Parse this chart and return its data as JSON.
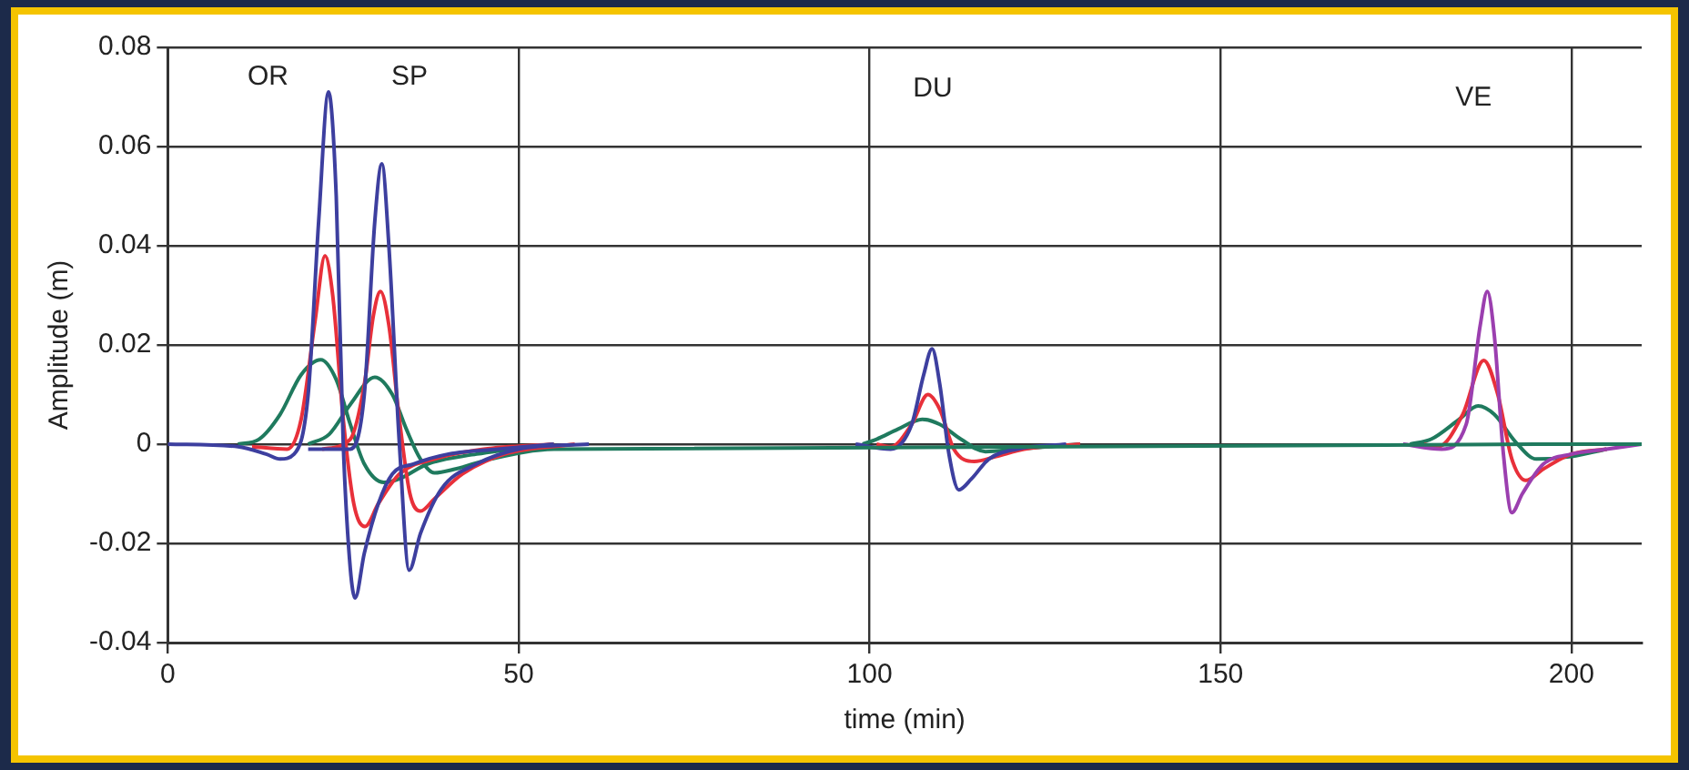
{
  "chart_data": {
    "type": "line",
    "xlabel": "time (min)",
    "ylabel": "Amplitude (m)",
    "xlim": [
      0,
      210
    ],
    "xticks": [
      0,
      50,
      100,
      150,
      200
    ],
    "ylim": [
      -0.04,
      0.08
    ],
    "yticks": [
      -0.04,
      -0.02,
      0,
      0.02,
      0.04,
      0.06,
      0.08
    ],
    "grid": true,
    "marker": "none",
    "line_style": "solid",
    "annotations": [
      "OR",
      "SP",
      "DU",
      "VE"
    ],
    "series": [
      {
        "color": "#3d3f9f",
        "x": [
          0,
          10,
          14,
          16,
          18,
          20,
          21.5,
          22.9,
          24,
          25,
          26,
          26.7,
          28,
          30,
          32,
          35,
          40,
          47,
          55
        ],
        "values": [
          0,
          -0.0005,
          -0.002,
          -0.003,
          -0.002,
          0.01,
          0.045,
          0.071,
          0.05,
          0,
          -0.025,
          -0.031,
          -0.022,
          -0.012,
          -0.006,
          -0.004,
          -0.002,
          -0.001,
          0
        ]
      },
      {
        "color": "#3d3f9f",
        "x": [
          20,
          26,
          28,
          29.5,
          30.5,
          31.5,
          33,
          34.4,
          36,
          39,
          44,
          50,
          60
        ],
        "values": [
          -0.001,
          -0.001,
          0.01,
          0.045,
          0.0565,
          0.04,
          0,
          -0.0254,
          -0.018,
          -0.009,
          -0.004,
          -0.001,
          0
        ]
      },
      {
        "color": "#e8303a",
        "x": [
          12,
          17,
          19,
          21,
          22.4,
          23.5,
          25,
          26.5,
          28.1,
          30,
          33,
          38,
          45,
          55
        ],
        "values": [
          -0.0005,
          -0.001,
          0.005,
          0.025,
          0.038,
          0.03,
          0.005,
          -0.012,
          -0.0166,
          -0.012,
          -0.006,
          -0.003,
          -0.001,
          0
        ]
      },
      {
        "color": "#e8303a",
        "x": [
          22,
          26,
          28,
          29.3,
          30.3,
          31.5,
          33,
          34.5,
          36,
          38,
          42,
          48,
          58
        ],
        "values": [
          -0.001,
          0.001,
          0.012,
          0.026,
          0.0308,
          0.024,
          0.005,
          -0.01,
          -0.0135,
          -0.011,
          -0.006,
          -0.002,
          0
        ]
      },
      {
        "color": "#1f7a5e",
        "x": [
          10,
          13,
          16,
          19,
          21.8,
          24,
          26,
          28,
          30.8,
          33,
          37,
          44,
          55
        ],
        "values": [
          0,
          0.001,
          0.006,
          0.014,
          0.017,
          0.013,
          0.004,
          -0.004,
          -0.0077,
          -0.007,
          -0.004,
          -0.002,
          0
        ]
      },
      {
        "color": "#1f7a5e",
        "x": [
          20,
          23,
          26,
          29.5,
          32,
          34,
          36,
          38,
          41,
          46,
          55,
          210
        ],
        "values": [
          0,
          0.002,
          0.008,
          0.0135,
          0.01,
          0.003,
          -0.003,
          -0.0058,
          -0.005,
          -0.003,
          -0.001,
          0
        ]
      },
      {
        "color": "#3d3f9f",
        "x": [
          98,
          103,
          106,
          107.7,
          108.9,
          110,
          111.3,
          112.7,
          114.5,
          117,
          121,
          128
        ],
        "values": [
          0,
          -0.001,
          0.004,
          0.014,
          0.0192,
          0.012,
          -0.002,
          -0.0092,
          -0.007,
          -0.003,
          -0.001,
          0
        ]
      },
      {
        "color": "#e8303a",
        "x": [
          101,
          103,
          106,
          108.3,
          110,
          112,
          114.9,
          118,
          122,
          130
        ],
        "values": [
          0,
          -0.0005,
          0.004,
          0.01,
          0.007,
          -0.001,
          -0.0035,
          -0.0025,
          -0.001,
          0
        ]
      },
      {
        "color": "#1f7a5e",
        "x": [
          99,
          101,
          104,
          107.5,
          110,
          113,
          116.5,
          121,
          130
        ],
        "values": [
          0,
          0.001,
          0.003,
          0.005,
          0.004,
          0.001,
          -0.0015,
          -0.001,
          0
        ]
      },
      {
        "color": "#9b3faf",
        "x": [
          176,
          181.5,
          185,
          187,
          188,
          189,
          190.3,
          191.5,
          193,
          196,
          200,
          205,
          210
        ],
        "values": [
          0,
          -0.001,
          0.004,
          0.024,
          0.0308,
          0.022,
          -0.002,
          -0.0138,
          -0.01,
          -0.004,
          -0.002,
          -0.001,
          0
        ]
      },
      {
        "color": "#e8303a",
        "x": [
          179,
          181,
          184.5,
          187.5,
          189.5,
          191.5,
          193.5,
          196,
          200,
          205
        ],
        "values": [
          0,
          -0.0005,
          0.006,
          0.0169,
          0.01,
          -0.003,
          -0.0073,
          -0.005,
          -0.002,
          -0.001
        ]
      },
      {
        "color": "#1f7a5e",
        "x": [
          177,
          180,
          184,
          186.7,
          189,
          192,
          195,
          200,
          205
        ],
        "values": [
          0,
          0.001,
          0.005,
          0.0077,
          0.006,
          0.0005,
          -0.003,
          -0.0025,
          -0.001
        ]
      }
    ]
  }
}
